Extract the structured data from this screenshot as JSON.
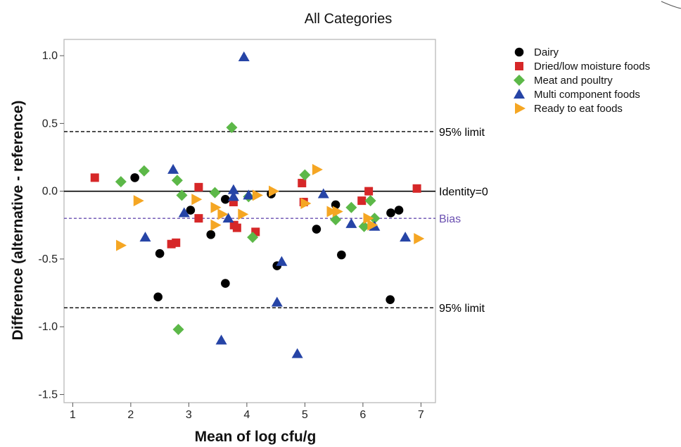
{
  "chart_data": {
    "type": "scatter",
    "title": "All Categories",
    "xlabel": "Mean of log cfu/g",
    "ylabel": "Difference (alternative - reference)",
    "xlim": [
      0.85,
      7.25
    ],
    "ylim": [
      -1.56,
      1.12
    ],
    "xticks": [
      1,
      2,
      3,
      4,
      5,
      6,
      7
    ],
    "yticks": [
      1.0,
      0.5,
      0.0,
      -0.5,
      -1.0,
      -1.5
    ],
    "ytick_labels": [
      "1.0",
      "0.5",
      "0.0",
      "-0.5",
      "-1.0",
      "-1.5"
    ],
    "grid": false,
    "legend_position": "right",
    "reference_lines": [
      {
        "name": "upper",
        "y": 0.44,
        "label": "95% limit",
        "style": "dashed",
        "color": "#000000"
      },
      {
        "name": "identity",
        "y": 0.0,
        "label": "Identity=0",
        "style": "solid",
        "color": "#000000"
      },
      {
        "name": "bias",
        "y": -0.2,
        "label": "Bias",
        "style": "dashed",
        "color": "#6a4fb0"
      },
      {
        "name": "lower",
        "y": -0.86,
        "label": "95% limit",
        "style": "dashed",
        "color": "#000000"
      }
    ],
    "series": [
      {
        "name": "Dairy",
        "marker": "circle",
        "color": "#000000",
        "points": [
          [
            2.07,
            0.1
          ],
          [
            2.5,
            -0.46
          ],
          [
            2.47,
            -0.78
          ],
          [
            3.03,
            -0.14
          ],
          [
            3.38,
            -0.32
          ],
          [
            3.63,
            -0.06
          ],
          [
            3.63,
            -0.68
          ],
          [
            4.42,
            -0.02
          ],
          [
            4.52,
            -0.55
          ],
          [
            5.2,
            -0.28
          ],
          [
            5.53,
            -0.1
          ],
          [
            5.63,
            -0.47
          ],
          [
            6.47,
            -0.8
          ],
          [
            6.48,
            -0.16
          ],
          [
            6.62,
            -0.14
          ]
        ]
      },
      {
        "name": "Dried/low moisture foods",
        "marker": "square",
        "color": "#d62728",
        "points": [
          [
            1.38,
            0.1
          ],
          [
            2.7,
            -0.39
          ],
          [
            2.78,
            -0.38
          ],
          [
            3.17,
            0.03
          ],
          [
            3.17,
            -0.2
          ],
          [
            3.77,
            -0.08
          ],
          [
            3.78,
            -0.25
          ],
          [
            3.83,
            -0.27
          ],
          [
            4.15,
            -0.3
          ],
          [
            4.95,
            0.06
          ],
          [
            4.98,
            -0.08
          ],
          [
            5.98,
            -0.07
          ],
          [
            6.1,
            0.0
          ],
          [
            6.93,
            0.02
          ]
        ]
      },
      {
        "name": "Meat and poultry",
        "marker": "diamond",
        "color": "#5cb848",
        "points": [
          [
            1.83,
            0.07
          ],
          [
            2.23,
            0.15
          ],
          [
            2.8,
            0.08
          ],
          [
            2.88,
            -0.03
          ],
          [
            2.82,
            -1.02
          ],
          [
            3.45,
            -0.01
          ],
          [
            3.74,
            0.47
          ],
          [
            4.03,
            -0.04
          ],
          [
            4.1,
            -0.34
          ],
          [
            5.0,
            0.12
          ],
          [
            5.53,
            -0.21
          ],
          [
            5.8,
            -0.12
          ],
          [
            6.02,
            -0.26
          ],
          [
            6.13,
            -0.07
          ],
          [
            6.2,
            -0.2
          ]
        ]
      },
      {
        "name": "Multi component foods",
        "marker": "triangle-up",
        "color": "#2644a6",
        "points": [
          [
            2.25,
            -0.34
          ],
          [
            2.73,
            0.16
          ],
          [
            2.92,
            -0.16
          ],
          [
            3.56,
            -1.1
          ],
          [
            3.68,
            -0.2
          ],
          [
            3.77,
            0.01
          ],
          [
            3.77,
            -0.04
          ],
          [
            3.95,
            0.99
          ],
          [
            4.03,
            -0.03
          ],
          [
            4.52,
            -0.82
          ],
          [
            4.6,
            -0.52
          ],
          [
            4.87,
            -1.2
          ],
          [
            5.32,
            -0.02
          ],
          [
            5.8,
            -0.24
          ],
          [
            6.2,
            -0.26
          ],
          [
            6.73,
            -0.34
          ]
        ]
      },
      {
        "name": "Ready to eat foods",
        "marker": "triangle-right",
        "color": "#f5a623",
        "points": [
          [
            1.82,
            -0.4
          ],
          [
            2.12,
            -0.07
          ],
          [
            3.12,
            -0.06
          ],
          [
            3.45,
            -0.12
          ],
          [
            3.45,
            -0.25
          ],
          [
            3.57,
            -0.17
          ],
          [
            3.92,
            -0.17
          ],
          [
            4.17,
            -0.03
          ],
          [
            4.45,
            0.0
          ],
          [
            5.0,
            -0.09
          ],
          [
            5.2,
            0.16
          ],
          [
            5.45,
            -0.15
          ],
          [
            5.55,
            -0.15
          ],
          [
            6.08,
            -0.2
          ],
          [
            6.15,
            -0.25
          ],
          [
            6.95,
            -0.35
          ]
        ]
      }
    ]
  }
}
